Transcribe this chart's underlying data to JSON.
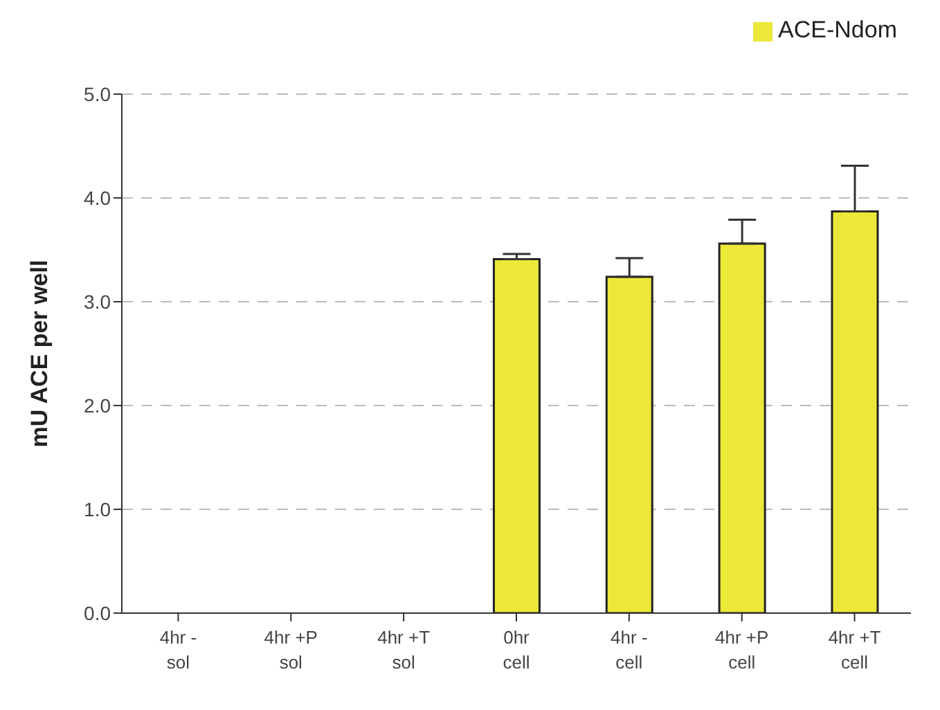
{
  "chart_data": {
    "type": "bar",
    "ylabel": "mU ACE per well",
    "categories": [
      "4hr -\nsol",
      "4hr +P\nsol",
      "4hr +T\nsol",
      "0hr\ncell",
      "4hr -\ncell",
      "4hr +P\ncell",
      "4hr +T\ncell"
    ],
    "series": [
      {
        "name": "ACE-Ndom",
        "color": "#ece83a",
        "values": [
          0,
          0,
          0,
          3.41,
          3.24,
          3.56,
          3.87
        ],
        "errors": [
          null,
          null,
          null,
          [
            3.41,
            3.46
          ],
          [
            3.24,
            3.42
          ],
          [
            3.56,
            3.79
          ],
          [
            3.87,
            4.31
          ]
        ]
      }
    ],
    "ylim": [
      0,
      5
    ],
    "yticks": [
      {
        "value": 0,
        "label": "0.0"
      },
      {
        "value": 1,
        "label": "1.0"
      },
      {
        "value": 2,
        "label": "2.0"
      },
      {
        "value": 3,
        "label": "3.0"
      },
      {
        "value": 4,
        "label": "4.0"
      },
      {
        "value": 5,
        "label": "5.0"
      }
    ],
    "grid": "y",
    "legend": "top right"
  }
}
